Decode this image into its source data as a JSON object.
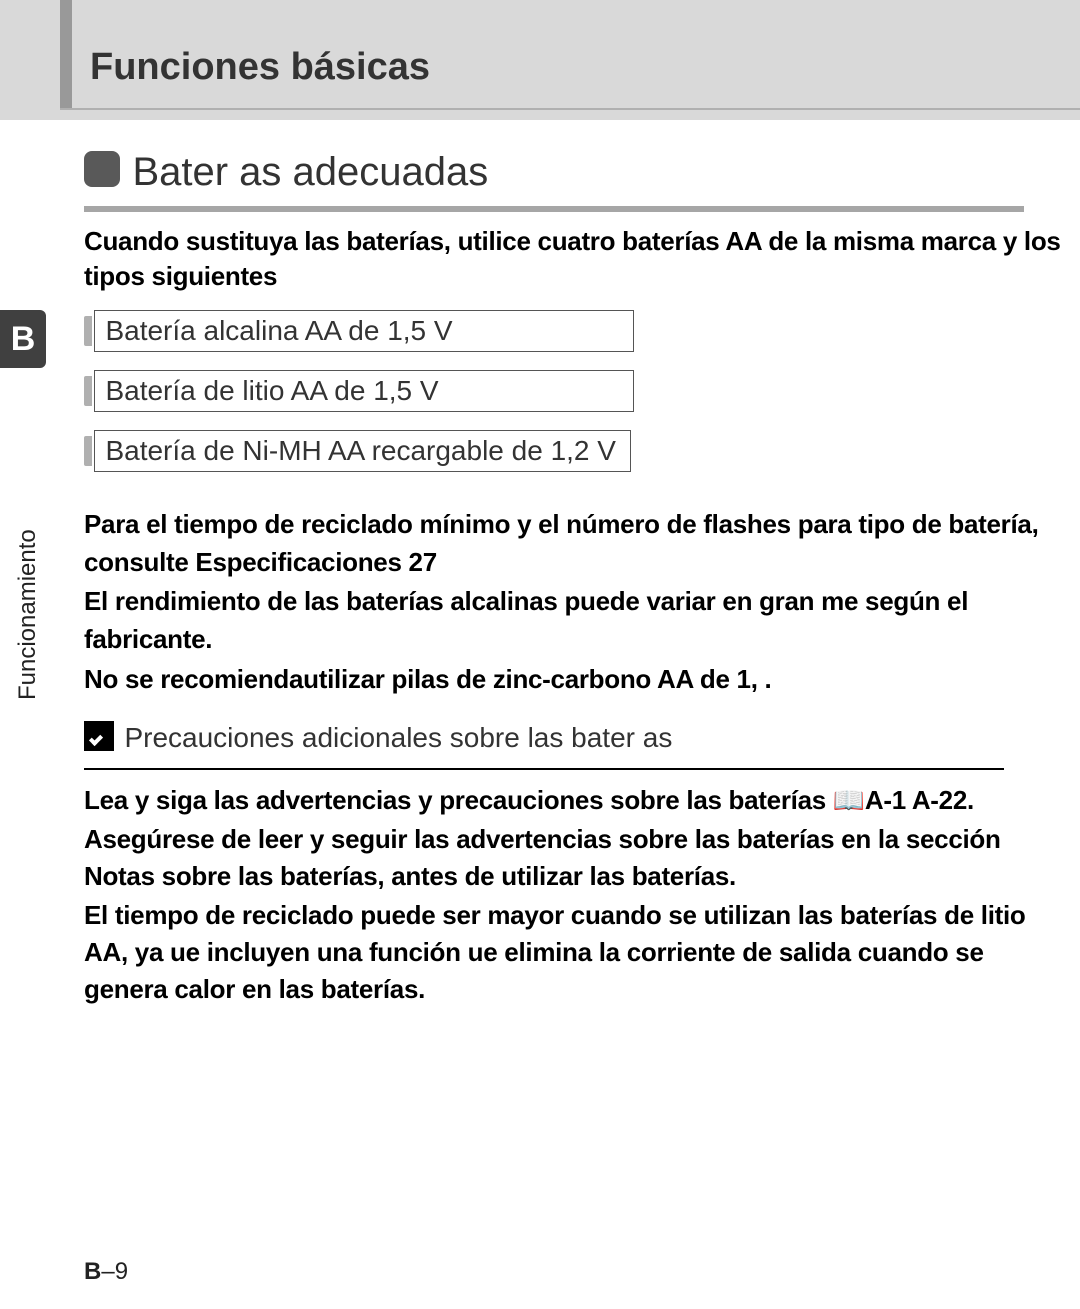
{
  "header": {
    "title": "Funciones básicas",
    "bg_color": "#d9d9d9",
    "accent_color": "#999999"
  },
  "section": {
    "title": "Bater as adecuadas",
    "icon_color": "#595959",
    "underline_color": "#a6a6a6"
  },
  "intro": "Cuando sustituya las baterías, utilice cuatro baterías AA de la misma marca y los tipos siguientes",
  "side": {
    "tab_letter": "B",
    "tab_bg": "#404040",
    "vertical_label": "Funcionamiento"
  },
  "batteries": {
    "items": [
      "Batería alcalina AA de 1,5 V",
      "Batería de litio AA de 1,5 V",
      "Batería de Ni-MH AA recargable de 1,2 V"
    ],
    "box_border_color": "#555555"
  },
  "bullets": {
    "items": [
      "Para el tiempo de reciclado mínimo y el número de flashes para tipo de batería, consulte Especificaciones 27",
      "El rendimiento de las baterías alcalinas puede variar en gran me según el fabricante.",
      "No se recomiendautilizar pilas de zinc-carbono AA de 1, ."
    ]
  },
  "note": {
    "title": "Precauciones adicionales sobre las bater as",
    "icon_bg": "#000000",
    "underline_color": "#000000",
    "paragraphs": [
      "Lea y siga las advertencias y precauciones sobre las baterías 📖A-1 A-22.",
      "Asegúrese de leer y seguir las advertencias sobre las baterías en la sección Notas sobre las baterías, antes de utilizar las baterías.",
      "El tiempo de reciclado puede ser mayor cuando se utilizan las baterías de litio AA, ya ue incluyen una función ue elimina la corriente de salida cuando se genera calor en las baterías."
    ]
  },
  "page_number": {
    "letter": "B",
    "sep": "–",
    "num": "9"
  }
}
